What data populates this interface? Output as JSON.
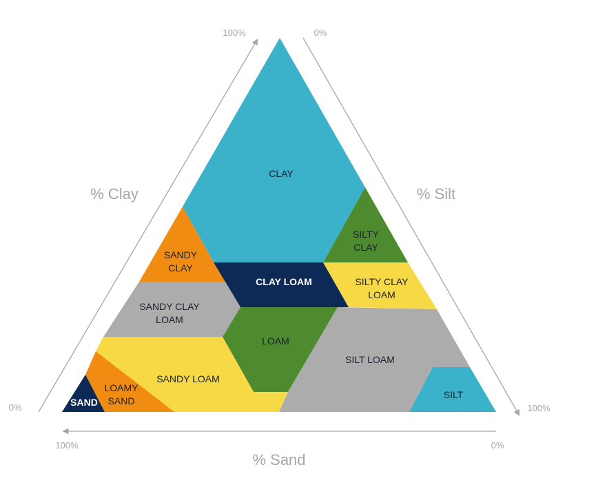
{
  "axes": {
    "clay": {
      "title": "% Clay",
      "start": "0%",
      "end": "100%"
    },
    "silt": {
      "title": "% Silt",
      "start": "0%",
      "end": "100%"
    },
    "sand": {
      "title": "% Sand",
      "start": "100%",
      "end": "0%"
    }
  },
  "regions": {
    "clay": {
      "line1": "CLAY",
      "color": "#3cb1ca"
    },
    "silty_clay": {
      "line1": "SILTY",
      "line2": "CLAY",
      "color": "#4e8a2e"
    },
    "sandy_clay": {
      "line1": "SANDY",
      "line2": "CLAY",
      "color": "#f08c11"
    },
    "clay_loam": {
      "line1": "CLAY LOAM",
      "color": "#0c2a55"
    },
    "silty_clay_loam": {
      "line1": "SILTY CLAY",
      "line2": "LOAM",
      "color": "#f7d946"
    },
    "sandy_clay_loam": {
      "line1": "SANDY CLAY",
      "line2": "LOAM",
      "color": "#acacac"
    },
    "loam": {
      "line1": "LOAM",
      "color": "#4e8a2e"
    },
    "silt_loam": {
      "line1": "SILT LOAM",
      "color": "#acacac"
    },
    "sandy_loam": {
      "line1": "SANDY LOAM",
      "color": "#f7d946"
    },
    "loamy_sand": {
      "line1": "LOAMY",
      "line2": "SAND",
      "color": "#f08c11"
    },
    "sand": {
      "line1": "SAND",
      "color": "#0c2a55"
    },
    "silt": {
      "line1": "SILT",
      "color": "#3cb1ca"
    }
  }
}
